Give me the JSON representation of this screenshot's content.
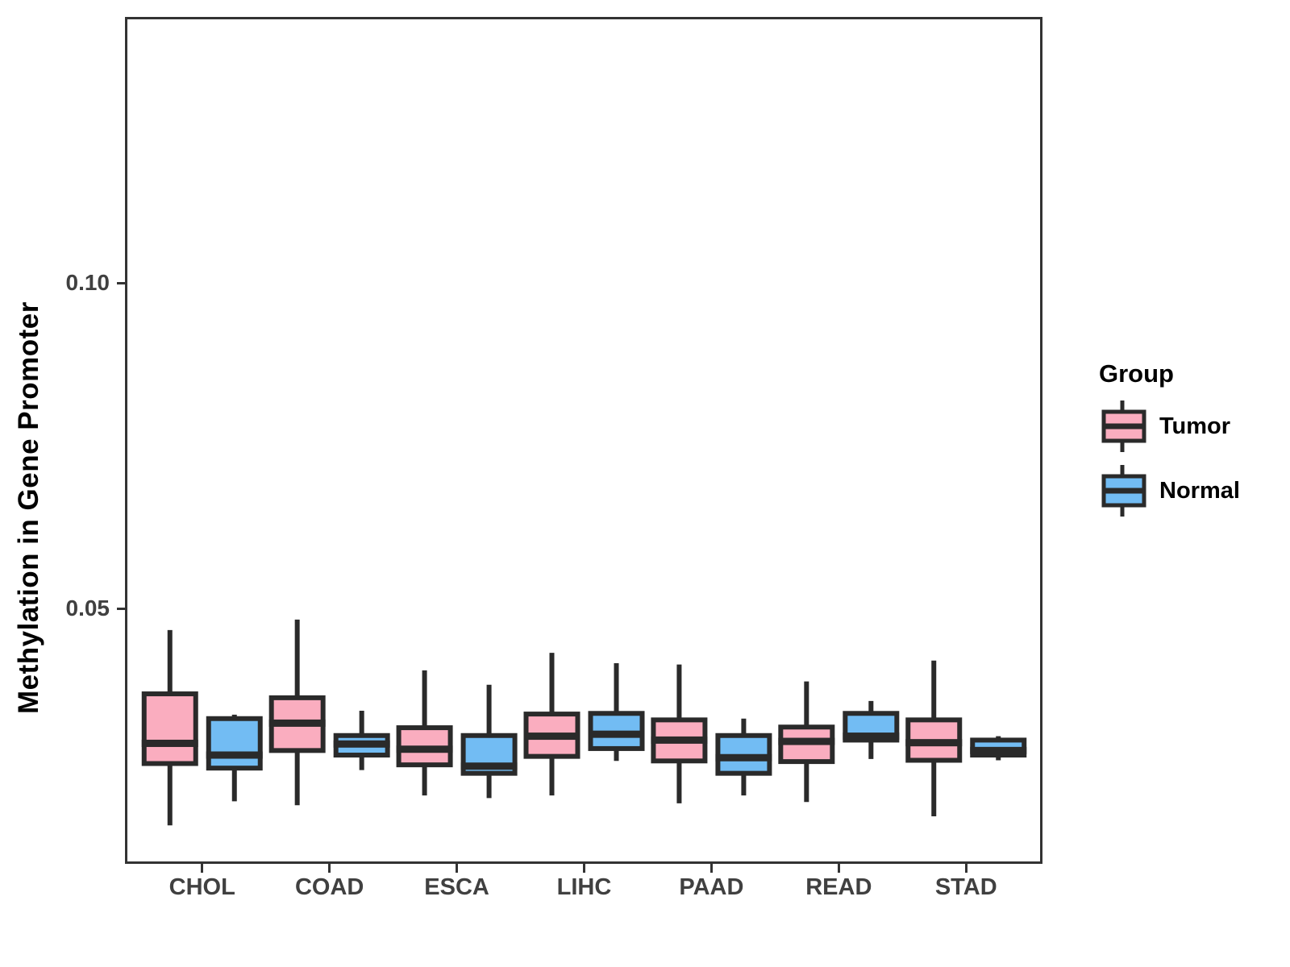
{
  "chart_data": {
    "type": "boxplot",
    "title": "",
    "xlabel": "",
    "ylabel": "Methylation in Gene Promoter",
    "categories": [
      "CHOL",
      "COAD",
      "ESCA",
      "LIHC",
      "PAAD",
      "READ",
      "STAD"
    ],
    "ylim": [
      0.0109,
      0.1408
    ],
    "yticks": [
      {
        "value": 0.1,
        "label": "0.10"
      },
      {
        "value": 0.05,
        "label": "0.05"
      }
    ],
    "grid": false,
    "legend": {
      "title": "Group",
      "position": "right",
      "entries": [
        {
          "label": "Tumor",
          "color": "#FAADBF"
        },
        {
          "label": "Normal",
          "color": "#72BCF3"
        }
      ]
    },
    "colors": {
      "box_border": "#2A2A2A",
      "panel_border": "#333333",
      "tick_text": "#404040",
      "axis_title": "#000000",
      "background": "#FFFFFF"
    },
    "series": [
      {
        "name": "Tumor",
        "color": "#FAADBF",
        "boxes": [
          {
            "category": "CHOL",
            "whisker_low": 0.0168,
            "q1": 0.0263,
            "median": 0.0294,
            "q3": 0.037,
            "whisker_high": 0.0468
          },
          {
            "category": "COAD",
            "whisker_low": 0.0199,
            "q1": 0.0283,
            "median": 0.0325,
            "q3": 0.0364,
            "whisker_high": 0.0484
          },
          {
            "category": "ESCA",
            "whisker_low": 0.0214,
            "q1": 0.0261,
            "median": 0.0285,
            "q3": 0.0318,
            "whisker_high": 0.0406
          },
          {
            "category": "LIHC",
            "whisker_low": 0.0214,
            "q1": 0.0274,
            "median": 0.0305,
            "q3": 0.0339,
            "whisker_high": 0.0433
          },
          {
            "category": "PAAD",
            "whisker_low": 0.0202,
            "q1": 0.0267,
            "median": 0.0299,
            "q3": 0.033,
            "whisker_high": 0.0415
          },
          {
            "category": "READ",
            "whisker_low": 0.0204,
            "q1": 0.0266,
            "median": 0.0297,
            "q3": 0.0319,
            "whisker_high": 0.0389
          },
          {
            "category": "STAD",
            "whisker_low": 0.0182,
            "q1": 0.0268,
            "median": 0.0295,
            "q3": 0.033,
            "whisker_high": 0.0421
          }
        ]
      },
      {
        "name": "Normal",
        "color": "#72BCF3",
        "boxes": [
          {
            "category": "CHOL",
            "whisker_low": 0.0205,
            "q1": 0.0256,
            "median": 0.0276,
            "q3": 0.0332,
            "whisker_high": 0.0338
          },
          {
            "category": "COAD",
            "whisker_low": 0.0253,
            "q1": 0.0276,
            "median": 0.0293,
            "q3": 0.0306,
            "whisker_high": 0.0344
          },
          {
            "category": "ESCA",
            "whisker_low": 0.021,
            "q1": 0.0248,
            "median": 0.0259,
            "q3": 0.0306,
            "whisker_high": 0.0384
          },
          {
            "category": "LIHC",
            "whisker_low": 0.0267,
            "q1": 0.0286,
            "median": 0.0308,
            "q3": 0.034,
            "whisker_high": 0.0417
          },
          {
            "category": "PAAD",
            "whisker_low": 0.0214,
            "q1": 0.0248,
            "median": 0.0272,
            "q3": 0.0306,
            "whisker_high": 0.0332
          },
          {
            "category": "READ",
            "whisker_low": 0.027,
            "q1": 0.0299,
            "median": 0.0305,
            "q3": 0.034,
            "whisker_high": 0.0359
          },
          {
            "category": "STAD",
            "whisker_low": 0.0268,
            "q1": 0.0276,
            "median": 0.0283,
            "q3": 0.0299,
            "whisker_high": 0.0305
          }
        ]
      }
    ]
  }
}
